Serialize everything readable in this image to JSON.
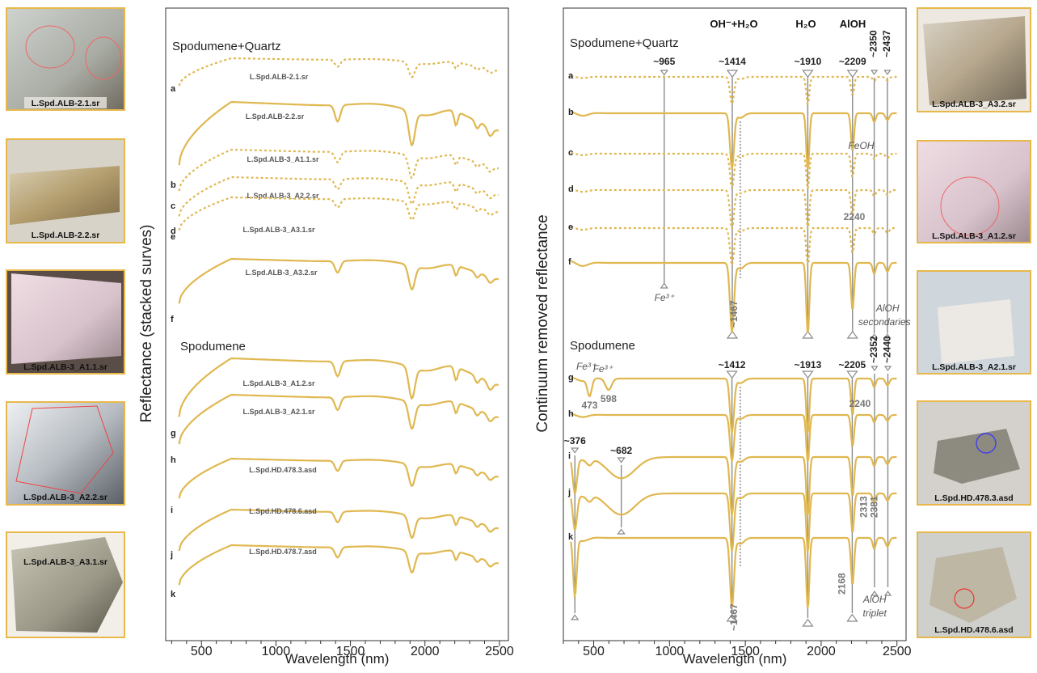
{
  "chart_data": [
    {
      "type": "line",
      "panel": "left",
      "xlabel": "Wavelength (nm)",
      "ylabel": "Reflectance (stacked surves)",
      "xlim": [
        260,
        2560
      ],
      "xticks": [
        500,
        1000,
        1500,
        2000,
        2500
      ],
      "groups": [
        "Spodumene+Quartz",
        "Spodumene"
      ],
      "series": [
        {
          "letter": "a",
          "name": "L.Spd.ALB-2.1.sr",
          "style": "dashed"
        },
        {
          "letter": "b",
          "name": "L.Spd.ALB-2.2.sr",
          "style": "solid"
        },
        {
          "letter": "c",
          "name": "L.Spd.ALB-3_A1.1.sr",
          "style": "dashed"
        },
        {
          "letter": "d",
          "name": "L.Spd.ALB-3_A2.2.sr",
          "style": "dashed"
        },
        {
          "letter": "e",
          "name": "L.Spd.ALB-3_A3.1.sr",
          "style": "dashed"
        },
        {
          "letter": "f",
          "name": "L.Spd.ALB-3_A3.2.sr",
          "style": "solid"
        },
        {
          "letter": "g",
          "name": "L.Spd.ALB-3_A1.2.sr",
          "style": "solid"
        },
        {
          "letter": "h",
          "name": "L.Spd.ALB-3_A2.1.sr",
          "style": "solid"
        },
        {
          "letter": "i",
          "name": "L.Spd.HD.478.3.asd",
          "style": "solid"
        },
        {
          "letter": "j",
          "name": "L.Spd.HD.478.6.asd",
          "style": "solid"
        },
        {
          "letter": "k",
          "name": "L.Spd.HD.478.7.asd",
          "style": "solid"
        }
      ]
    },
    {
      "type": "line",
      "panel": "right",
      "xlabel": "Wavelength (nm)",
      "ylabel": "Continuum removed reflectance",
      "xlim": [
        300,
        2560
      ],
      "xticks": [
        500,
        1000,
        1500,
        2000,
        2500
      ],
      "groups": [
        "Spodumene+Quartz",
        "Spodumene"
      ],
      "band_headers": [
        "OH⁻+H₂O",
        "H₂O",
        "AlOH"
      ],
      "features_top": [
        "~965",
        "~1414",
        "~1910",
        "~2209",
        "~2350",
        "~2437"
      ],
      "features_bottom": [
        "~376",
        "~682",
        "~1412",
        "~1913",
        "~2205",
        "~2352",
        "~2440"
      ],
      "minor_labels": [
        "~1467",
        "~1467",
        "2240",
        "2240",
        "473",
        "598",
        "2313",
        "2381",
        "2168"
      ],
      "italic_notes": [
        "Fe³⁺",
        "FeOH",
        "AlOH",
        "secondaries",
        "Fe³⁺",
        "Fe³⁺",
        "AlOH",
        "triplet"
      ],
      "series_letters_top": [
        "a",
        "b",
        "c",
        "d",
        "e",
        "f"
      ],
      "series_letters_bottom": [
        "g",
        "h",
        "i",
        "j",
        "k"
      ]
    }
  ],
  "photos_left": [
    "L.Spd.ALB-2.1.sr",
    "L.Spd.ALB-2.2.sr",
    "L.Spd.ALB-3_A1.1.sr",
    "L.Spd.ALB-3_A2.2.sr",
    "L.Spd.ALB-3_A3.1.sr"
  ],
  "photos_right": [
    "L.Spd.ALB-3_A3.2.sr",
    "L.Spd.ALB-3_A1.2.sr",
    "L.Spd.ALB-3_A2.1.sr",
    "L.Spd.HD.478.3.asd",
    "L.Spd.HD.478.6.asd"
  ],
  "colors": {
    "curve": "#e0b850",
    "frame": "#e8b84a",
    "feature_line": "#8a8a8a"
  }
}
